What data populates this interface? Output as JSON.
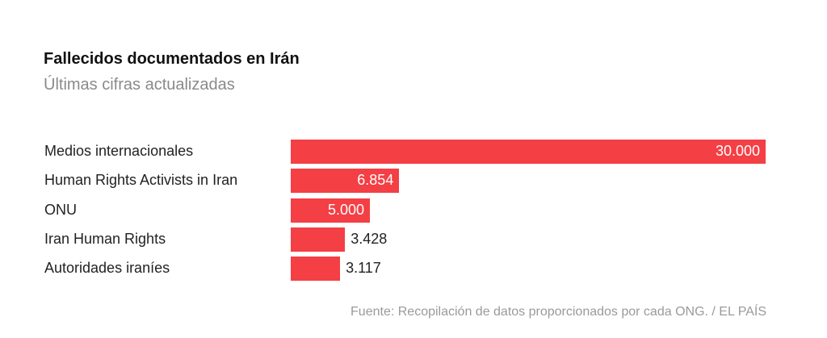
{
  "chart_data": {
    "type": "bar",
    "orientation": "horizontal",
    "title": "Fallecidos documentados en Irán",
    "subtitle": "Últimas cifras actualizadas",
    "categories": [
      "Medios internacionales",
      "Human Rights Activists in Iran",
      "ONU",
      "Iran Human Rights",
      "Autoridades iraníes"
    ],
    "values": [
      30000,
      6854,
      5000,
      3428,
      3117
    ],
    "value_labels": [
      "30.000",
      "6.854",
      "5.000",
      "3.428",
      "3.117"
    ],
    "xlim": [
      0,
      30000
    ],
    "bar_color": "#f43f45",
    "source": "Fuente: Recopilación de datos proporcionados por cada ONG. / EL PAÍS"
  }
}
